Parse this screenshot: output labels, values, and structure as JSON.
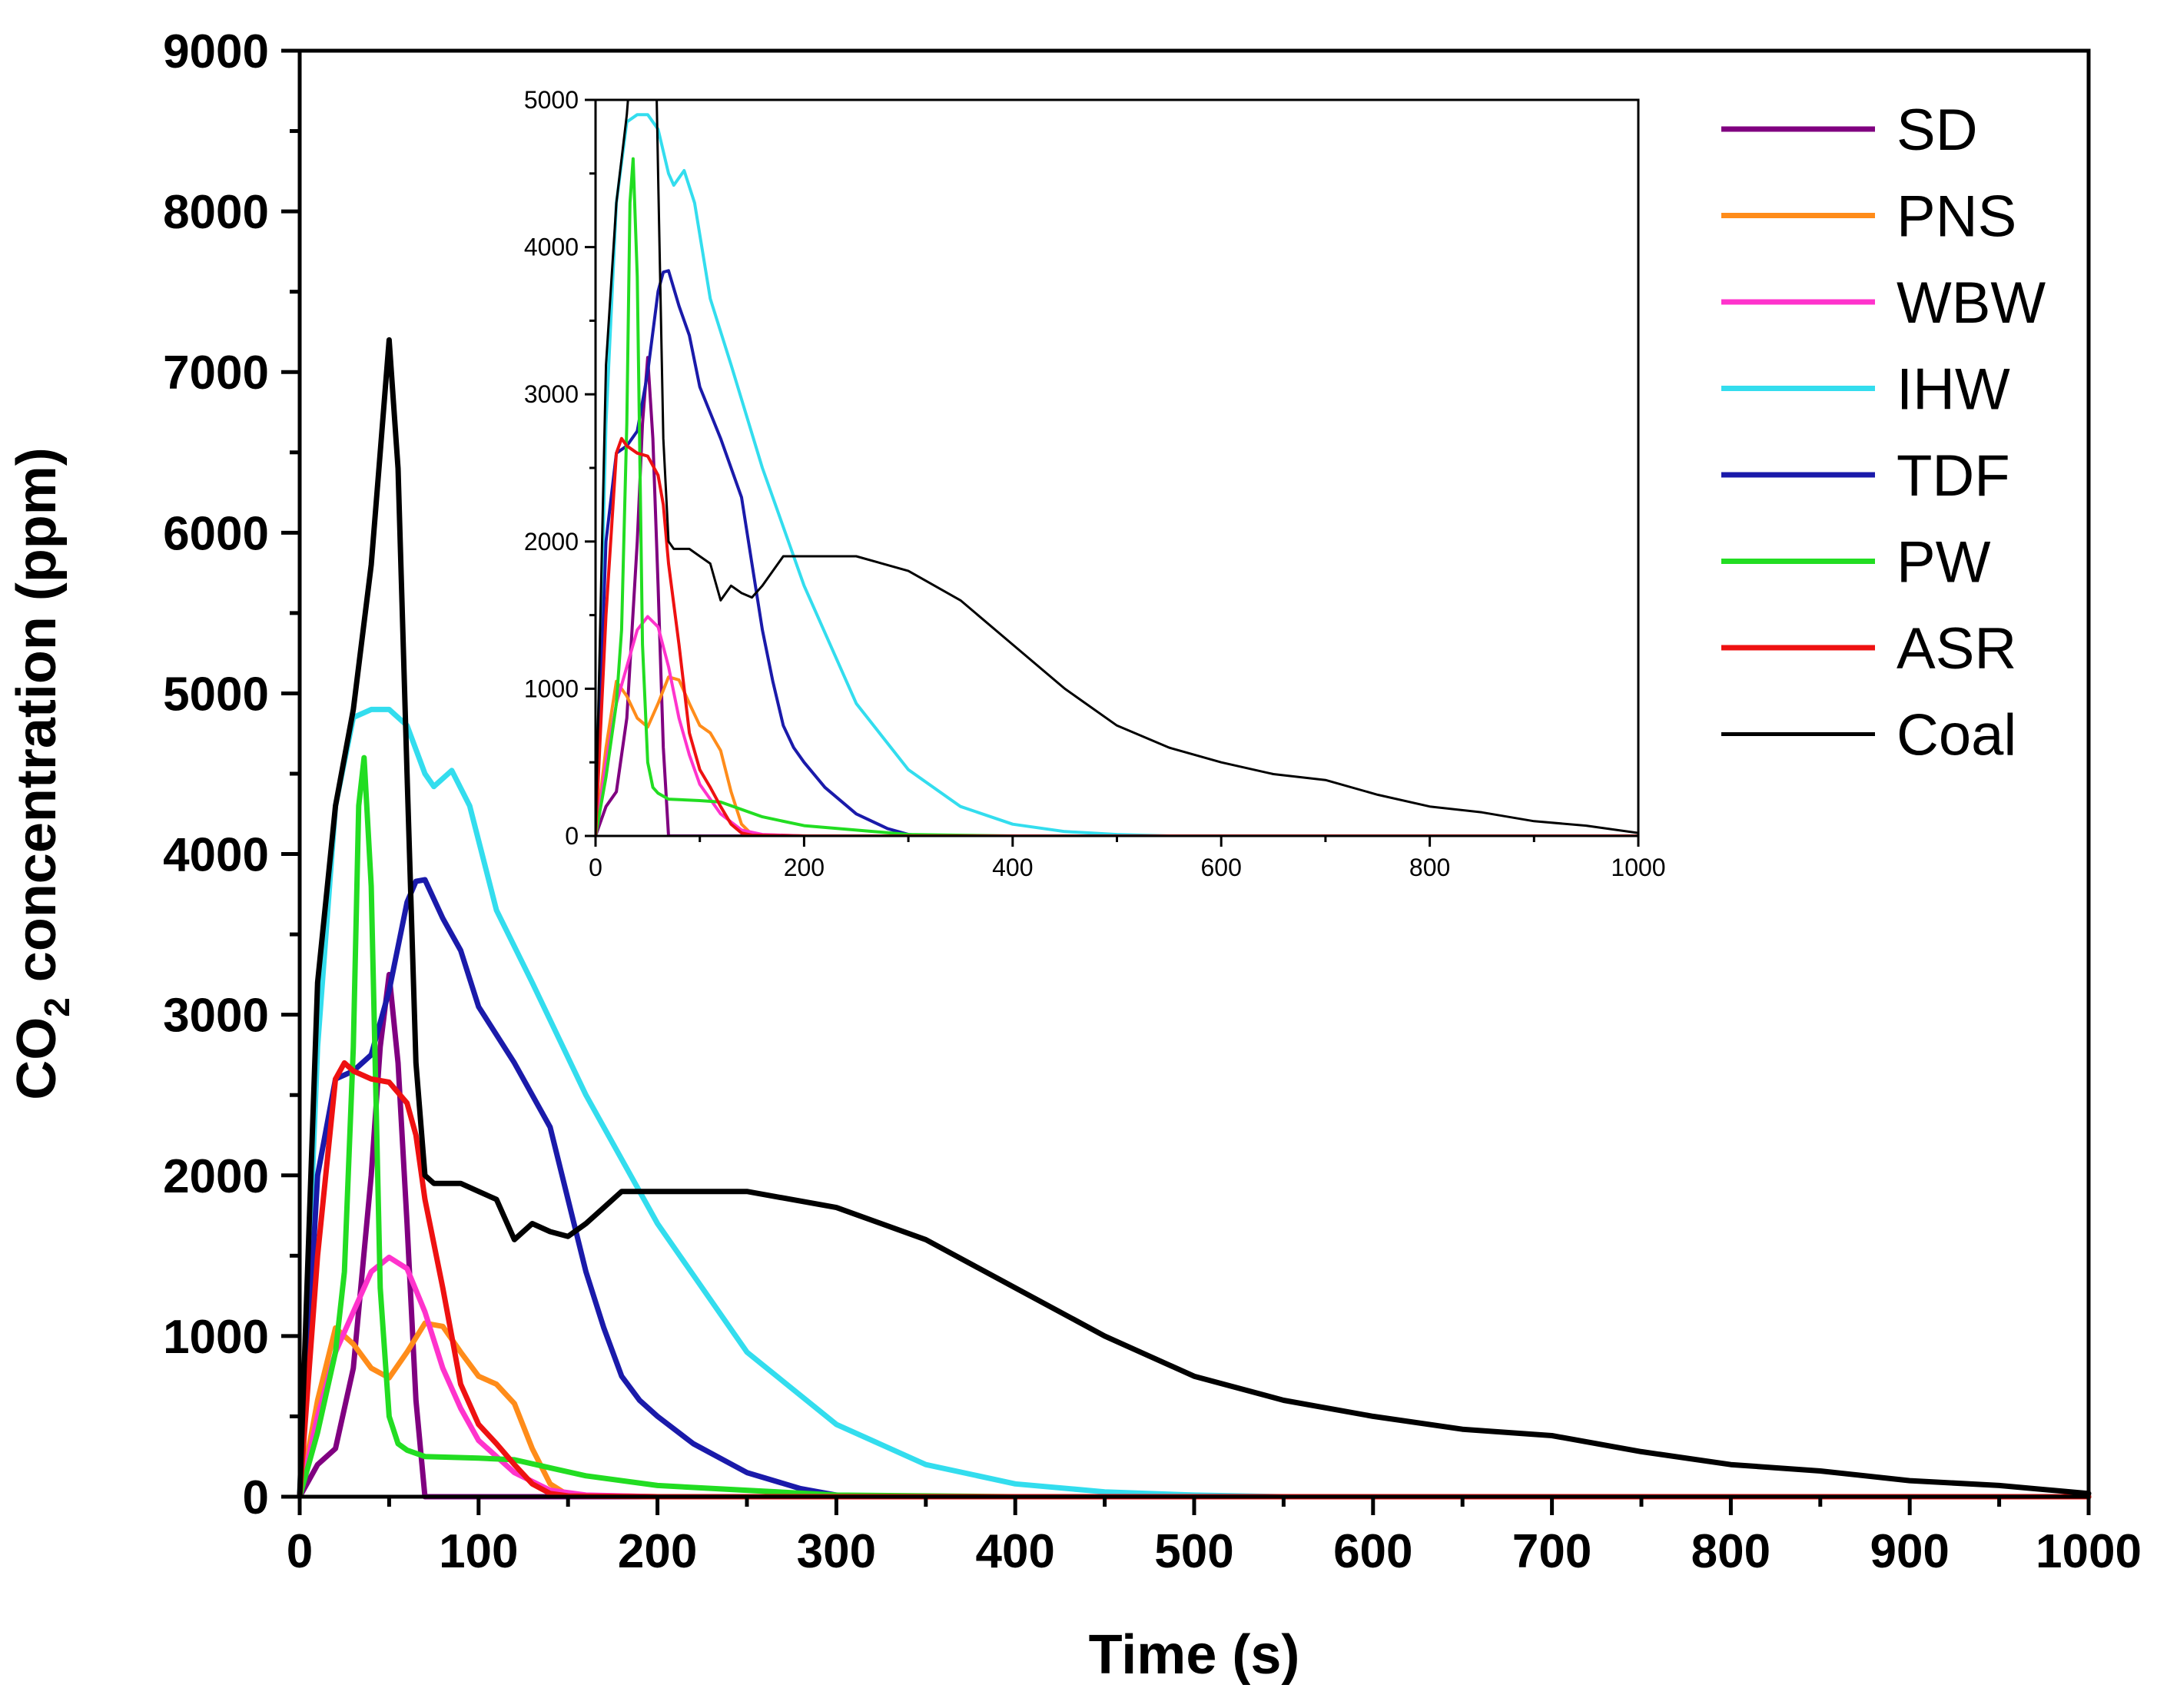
{
  "chart_data": [
    {
      "id": "main",
      "type": "line",
      "xlabel": "Time (s)",
      "ylabel_prefix": "CO",
      "ylabel_sub": "2",
      "ylabel_suffix": " concentration (ppm)",
      "xlim": [
        0,
        1000
      ],
      "ylim": [
        0,
        9000
      ],
      "xticks": [
        "0",
        "100",
        "200",
        "300",
        "400",
        "500",
        "600",
        "700",
        "800",
        "900",
        "1000"
      ],
      "yticks": [
        "0",
        "1000",
        "2000",
        "3000",
        "4000",
        "5000",
        "6000",
        "7000",
        "8000",
        "9000"
      ],
      "legend_position": "top-right",
      "series": [
        {
          "name": "SD",
          "color": "#800080",
          "x": [
            0,
            10,
            20,
            30,
            40,
            45,
            50,
            55,
            60,
            65,
            70,
            1000
          ],
          "y": [
            0,
            200,
            300,
            800,
            2000,
            2800,
            3250,
            2700,
            1700,
            600,
            0,
            0
          ]
        },
        {
          "name": "PNS",
          "color": "#ff8c1a",
          "x": [
            0,
            10,
            20,
            30,
            40,
            50,
            60,
            70,
            80,
            90,
            100,
            110,
            120,
            130,
            140,
            150,
            200,
            1000
          ],
          "y": [
            0,
            600,
            1050,
            950,
            800,
            740,
            900,
            1080,
            1060,
            900,
            750,
            700,
            580,
            300,
            80,
            10,
            0,
            0
          ]
        },
        {
          "name": "WBW",
          "color": "#ff33cc",
          "x": [
            0,
            10,
            20,
            30,
            40,
            50,
            60,
            70,
            80,
            90,
            100,
            120,
            140,
            160,
            200,
            1000
          ],
          "y": [
            0,
            500,
            900,
            1150,
            1400,
            1490,
            1420,
            1150,
            800,
            550,
            350,
            150,
            40,
            10,
            0,
            0
          ]
        },
        {
          "name": "IHW",
          "color": "#33ddee",
          "x": [
            0,
            10,
            20,
            30,
            40,
            50,
            60,
            70,
            75,
            85,
            95,
            110,
            130,
            160,
            200,
            250,
            300,
            350,
            400,
            450,
            500,
            550,
            600,
            1000
          ],
          "y": [
            0,
            2800,
            4300,
            4850,
            4900,
            4900,
            4800,
            4500,
            4420,
            4520,
            4300,
            3650,
            3200,
            2500,
            1700,
            900,
            450,
            200,
            80,
            30,
            10,
            0,
            0,
            0
          ]
        },
        {
          "name": "TDF",
          "color": "#1a1aaa",
          "x": [
            0,
            10,
            20,
            30,
            40,
            50,
            60,
            65,
            70,
            80,
            90,
            100,
            120,
            140,
            150,
            160,
            170,
            180,
            190,
            200,
            220,
            250,
            280,
            300,
            320,
            1000
          ],
          "y": [
            0,
            2000,
            2600,
            2650,
            2750,
            3150,
            3700,
            3830,
            3840,
            3600,
            3400,
            3050,
            2700,
            2300,
            1850,
            1400,
            1050,
            750,
            600,
            500,
            330,
            150,
            50,
            10,
            0,
            0
          ]
        },
        {
          "name": "PW",
          "color": "#22dd22",
          "x": [
            0,
            10,
            20,
            25,
            30,
            33,
            36,
            40,
            45,
            50,
            55,
            60,
            70,
            100,
            120,
            140,
            160,
            200,
            300,
            400,
            1000
          ],
          "y": [
            0,
            400,
            900,
            1400,
            2800,
            4300,
            4600,
            3800,
            1300,
            500,
            330,
            290,
            250,
            240,
            230,
            180,
            130,
            70,
            10,
            0,
            0
          ]
        },
        {
          "name": "ASR",
          "color": "#ee1111",
          "x": [
            0,
            10,
            20,
            25,
            30,
            40,
            50,
            60,
            65,
            70,
            80,
            90,
            100,
            110,
            120,
            130,
            140,
            150,
            200,
            1000
          ],
          "y": [
            0,
            1500,
            2600,
            2700,
            2650,
            2600,
            2580,
            2450,
            2250,
            1850,
            1300,
            700,
            450,
            330,
            200,
            80,
            20,
            5,
            0,
            0
          ]
        },
        {
          "name": "Coal",
          "color": "#000000",
          "x": [
            0,
            10,
            20,
            30,
            40,
            45,
            50,
            55,
            60,
            65,
            70,
            75,
            80,
            90,
            100,
            110,
            120,
            130,
            140,
            150,
            160,
            170,
            180,
            200,
            250,
            300,
            350,
            400,
            450,
            500,
            550,
            600,
            650,
            700,
            750,
            800,
            850,
            900,
            950,
            1000
          ],
          "y": [
            0,
            3200,
            4300,
            4900,
            5800,
            6500,
            7200,
            6400,
            4500,
            2700,
            2000,
            1950,
            1950,
            1950,
            1900,
            1850,
            1600,
            1700,
            1650,
            1620,
            1700,
            1800,
            1900,
            1900,
            1900,
            1800,
            1600,
            1300,
            1000,
            750,
            600,
            500,
            420,
            380,
            280,
            200,
            160,
            100,
            70,
            20
          ]
        }
      ]
    },
    {
      "id": "inset",
      "type": "line",
      "xlabel": "",
      "ylabel": "",
      "xlim": [
        0,
        1000
      ],
      "ylim": [
        0,
        5000
      ],
      "xticks": [
        "0",
        "200",
        "400",
        "600",
        "800",
        "1000"
      ],
      "yticks": [
        "0",
        "1000",
        "2000",
        "3000",
        "4000",
        "5000"
      ],
      "series_ref": "same series as main"
    }
  ]
}
